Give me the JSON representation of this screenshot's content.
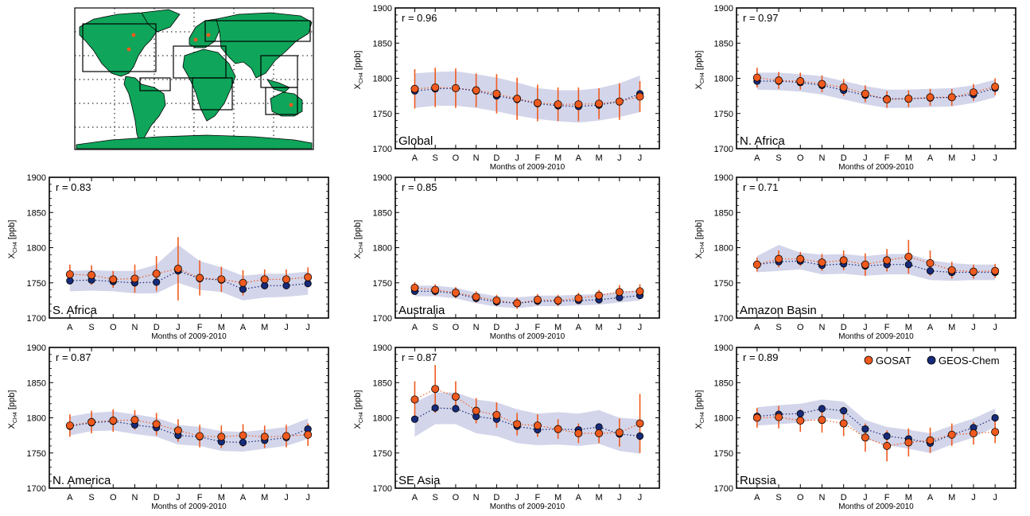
{
  "figure": {
    "xlabel": "Months of 2009-2010",
    "ylabel_main": "X",
    "ylabel_sub": "CH4",
    "ylabel_unit": " [ppb]",
    "legend": {
      "gosat": "GOSAT",
      "geos": "GEOS-Chem"
    },
    "colors": {
      "gosat": "#ef5a1e",
      "geos": "#172b7a",
      "band": "#d3d5ea",
      "map_land": "#0fa55a"
    },
    "map_panel": {
      "data_name": "world-map-inset",
      "regions_boxed": 7,
      "site_markers": "orange dots"
    }
  },
  "chart_data": [
    {
      "type": "line",
      "title": "Global",
      "r_label": "r = 0.96",
      "categories": [
        "A",
        "S",
        "O",
        "N",
        "D",
        "J",
        "F",
        "M",
        "A",
        "M",
        "J",
        "J"
      ],
      "ylim": [
        1700,
        1900
      ],
      "yticks": [
        1700,
        1750,
        1800,
        1850,
        1900
      ],
      "series": [
        {
          "name": "GOSAT",
          "values": [
            1785,
            1787,
            1786,
            1783,
            1778,
            1771,
            1765,
            1763,
            1763,
            1764,
            1767,
            1774
          ],
          "error": [
            28,
            28,
            28,
            24,
            28,
            30,
            26,
            24,
            24,
            22,
            26,
            22
          ]
        },
        {
          "name": "GEOS-Chem",
          "values": [
            1782,
            1785,
            1786,
            1782,
            1775,
            1770,
            1764,
            1761,
            1760,
            1762,
            1767,
            1778
          ]
        }
      ],
      "band_low": [
        1758,
        1761,
        1761,
        1758,
        1753,
        1747,
        1742,
        1739,
        1737,
        1740,
        1745,
        1752
      ],
      "band_high": [
        1807,
        1809,
        1810,
        1806,
        1801,
        1794,
        1786,
        1783,
        1783,
        1786,
        1793,
        1804
      ]
    },
    {
      "type": "line",
      "title": "N. Africa",
      "r_label": "r = 0.97",
      "categories": [
        "A",
        "S",
        "O",
        "N",
        "D",
        "J",
        "F",
        "M",
        "A",
        "M",
        "J",
        "J"
      ],
      "ylim": [
        1700,
        1900
      ],
      "yticks": [
        1700,
        1750,
        1800,
        1850,
        1900
      ],
      "series": [
        {
          "name": "GOSAT",
          "values": [
            1801,
            1797,
            1796,
            1792,
            1787,
            1778,
            1770,
            1771,
            1773,
            1773,
            1780,
            1788
          ],
          "error": [
            14,
            12,
            12,
            12,
            12,
            12,
            12,
            12,
            12,
            12,
            12,
            12
          ]
        },
        {
          "name": "GEOS-Chem",
          "values": [
            1796,
            1796,
            1794,
            1790,
            1783,
            1776,
            1771,
            1771,
            1772,
            1773,
            1777,
            1786
          ]
        }
      ],
      "band_low": [
        1784,
        1783,
        1781,
        1777,
        1770,
        1763,
        1758,
        1758,
        1759,
        1760,
        1765,
        1773
      ],
      "band_high": [
        1808,
        1808,
        1806,
        1803,
        1796,
        1789,
        1784,
        1784,
        1785,
        1786,
        1790,
        1798
      ]
    },
    {
      "type": "line",
      "title": "S. Africa",
      "r_label": "r = 0.83",
      "categories": [
        "A",
        "S",
        "O",
        "N",
        "D",
        "J",
        "F",
        "M",
        "A",
        "M",
        "J",
        "J"
      ],
      "ylim": [
        1700,
        1900
      ],
      "yticks": [
        1700,
        1750,
        1800,
        1850,
        1900
      ],
      "series": [
        {
          "name": "GOSAT",
          "values": [
            1762,
            1761,
            1755,
            1756,
            1763,
            1770,
            1757,
            1755,
            1750,
            1755,
            1755,
            1758
          ],
          "error": [
            14,
            14,
            12,
            20,
            25,
            45,
            25,
            18,
            18,
            14,
            14,
            14
          ]
        },
        {
          "name": "GEOS-Chem",
          "values": [
            1753,
            1754,
            1752,
            1750,
            1751,
            1767,
            1756,
            1754,
            1741,
            1746,
            1746,
            1749
          ]
        }
      ],
      "band_low": [
        1738,
        1739,
        1738,
        1735,
        1735,
        1750,
        1740,
        1737,
        1725,
        1729,
        1730,
        1733
      ],
      "band_high": [
        1767,
        1768,
        1767,
        1767,
        1776,
        1804,
        1781,
        1772,
        1760,
        1763,
        1763,
        1766
      ]
    },
    {
      "type": "line",
      "title": "Australia",
      "r_label": "r = 0.85",
      "categories": [
        "A",
        "S",
        "O",
        "N",
        "D",
        "J",
        "F",
        "M",
        "A",
        "M",
        "J",
        "J"
      ],
      "ylim": [
        1700,
        1900
      ],
      "yticks": [
        1700,
        1750,
        1800,
        1850,
        1900
      ],
      "series": [
        {
          "name": "GOSAT",
          "values": [
            1743,
            1740,
            1736,
            1730,
            1725,
            1721,
            1726,
            1725,
            1728,
            1732,
            1737,
            1738
          ],
          "error": [
            8,
            8,
            8,
            8,
            8,
            8,
            8,
            8,
            8,
            8,
            10,
            10
          ]
        },
        {
          "name": "GEOS-Chem",
          "values": [
            1738,
            1738,
            1735,
            1728,
            1723,
            1721,
            1724,
            1724,
            1725,
            1726,
            1729,
            1732
          ]
        }
      ],
      "band_low": [
        1731,
        1731,
        1728,
        1721,
        1716,
        1714,
        1717,
        1717,
        1718,
        1719,
        1722,
        1725
      ],
      "band_high": [
        1746,
        1746,
        1743,
        1736,
        1731,
        1729,
        1732,
        1732,
        1733,
        1734,
        1737,
        1740
      ]
    },
    {
      "type": "line",
      "title": "Amazon Basin",
      "r_label": "r = 0.71",
      "categories": [
        "A",
        "S",
        "O",
        "N",
        "D",
        "J",
        "F",
        "M",
        "A",
        "M",
        "J",
        "J"
      ],
      "ylim": [
        1700,
        1900
      ],
      "yticks": [
        1700,
        1750,
        1800,
        1850,
        1900
      ],
      "series": [
        {
          "name": "GOSAT",
          "values": [
            1776,
            1784,
            1784,
            1779,
            1782,
            1776,
            1782,
            1787,
            1778,
            1768,
            1766,
            1767
          ],
          "error": [
            10,
            12,
            10,
            12,
            14,
            16,
            16,
            24,
            18,
            12,
            10,
            10
          ]
        },
        {
          "name": "GEOS-Chem",
          "values": [
            1776,
            1780,
            1781,
            1775,
            1777,
            1774,
            1776,
            1776,
            1767,
            1765,
            1765,
            1765
          ]
        }
      ],
      "band_low": [
        1765,
        1767,
        1769,
        1762,
        1763,
        1760,
        1762,
        1762,
        1754,
        1753,
        1754,
        1754
      ],
      "band_high": [
        1788,
        1804,
        1793,
        1790,
        1791,
        1788,
        1791,
        1791,
        1782,
        1778,
        1776,
        1776
      ]
    },
    {
      "type": "line",
      "title": "N. America",
      "r_label": "r = 0.87",
      "categories": [
        "A",
        "S",
        "O",
        "N",
        "D",
        "J",
        "F",
        "M",
        "A",
        "M",
        "J",
        "J"
      ],
      "ylim": [
        1700,
        1900
      ],
      "yticks": [
        1700,
        1750,
        1800,
        1850,
        1900
      ],
      "series": [
        {
          "name": "GOSAT",
          "values": [
            1789,
            1794,
            1796,
            1797,
            1791,
            1782,
            1774,
            1773,
            1775,
            1773,
            1774,
            1776
          ],
          "error": [
            16,
            16,
            16,
            14,
            16,
            16,
            16,
            16,
            16,
            16,
            16,
            16
          ]
        },
        {
          "name": "GEOS-Chem",
          "values": [
            1788,
            1793,
            1795,
            1790,
            1786,
            1775,
            1773,
            1766,
            1765,
            1768,
            1772,
            1784
          ]
        }
      ],
      "band_low": [
        1775,
        1781,
        1782,
        1777,
        1773,
        1762,
        1760,
        1753,
        1752,
        1756,
        1760,
        1770
      ],
      "band_high": [
        1802,
        1807,
        1809,
        1805,
        1800,
        1790,
        1787,
        1781,
        1780,
        1783,
        1787,
        1799
      ]
    },
    {
      "type": "line",
      "title": "SE Asia",
      "r_label": "r = 0.87",
      "categories": [
        "A",
        "S",
        "O",
        "N",
        "D",
        "J",
        "F",
        "M",
        "A",
        "M",
        "J",
        "J"
      ],
      "ylim": [
        1700,
        1900
      ],
      "yticks": [
        1700,
        1750,
        1800,
        1850,
        1900
      ],
      "series": [
        {
          "name": "GOSAT",
          "values": [
            1826,
            1841,
            1830,
            1810,
            1804,
            1791,
            1789,
            1784,
            1778,
            1778,
            1779,
            1792
          ],
          "error": [
            26,
            34,
            22,
            18,
            18,
            16,
            16,
            14,
            14,
            14,
            20,
            42
          ]
        },
        {
          "name": "GEOS-Chem",
          "values": [
            1798,
            1814,
            1813,
            1802,
            1798,
            1788,
            1783,
            1784,
            1783,
            1787,
            1777,
            1774
          ]
        }
      ],
      "band_low": [
        1773,
        1791,
        1791,
        1778,
        1774,
        1764,
        1761,
        1762,
        1760,
        1763,
        1753,
        1749
      ],
      "band_high": [
        1822,
        1836,
        1836,
        1826,
        1822,
        1812,
        1806,
        1808,
        1806,
        1811,
        1800,
        1798
      ]
    },
    {
      "type": "line",
      "title": "Russia",
      "r_label": "r = 0.89",
      "categories": [
        "A",
        "S",
        "O",
        "N",
        "D",
        "J",
        "F",
        "M",
        "A",
        "M",
        "J",
        "J"
      ],
      "ylim": [
        1700,
        1900
      ],
      "yticks": [
        1700,
        1750,
        1800,
        1850,
        1900
      ],
      "legend_shown": true,
      "series": [
        {
          "name": "GOSAT",
          "values": [
            1800,
            1801,
            1796,
            1797,
            1792,
            1772,
            1760,
            1765,
            1768,
            1776,
            1778,
            1780
          ],
          "error": [
            14,
            16,
            16,
            18,
            18,
            20,
            22,
            20,
            18,
            16,
            16,
            16
          ]
        },
        {
          "name": "GEOS-Chem",
          "values": [
            1802,
            1805,
            1806,
            1813,
            1810,
            1784,
            1774,
            1770,
            1764,
            1776,
            1786,
            1800
          ]
        }
      ],
      "band_low": [
        1789,
        1791,
        1793,
        1800,
        1797,
        1770,
        1761,
        1756,
        1750,
        1762,
        1772,
        1787
      ],
      "band_high": [
        1815,
        1818,
        1820,
        1826,
        1823,
        1797,
        1787,
        1783,
        1778,
        1789,
        1799,
        1813
      ]
    }
  ]
}
